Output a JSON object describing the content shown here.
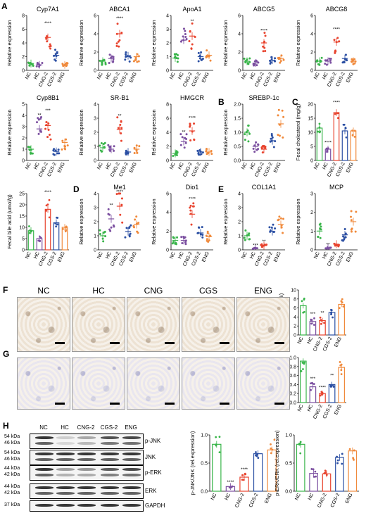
{
  "groups": [
    "NC",
    "HC",
    "CNG-2",
    "CGS-2",
    "ENG"
  ],
  "colors": {
    "NC": "#39b54a",
    "HC": "#7b4fa0",
    "CNG-2": "#e8442f",
    "CGS-2": "#2b4fa3",
    "ENG": "#f08a3c"
  },
  "panel_letters": [
    "A",
    "B",
    "C",
    "D",
    "E",
    "F",
    "G",
    "H"
  ],
  "y_label_rel": "Relative expression",
  "chart_data": [
    {
      "type": "scatter",
      "title": "Cyp7A1",
      "ylabel": "Relative expression",
      "ylim": [
        0,
        8
      ],
      "yticks": [
        "0",
        "2",
        "4",
        "6",
        "8"
      ],
      "means": [
        1.0,
        0.8,
        4.8,
        2.2,
        0.8
      ],
      "sig": [
        "",
        "",
        "****",
        "",
        ""
      ]
    },
    {
      "type": "scatter",
      "title": "ABCA1",
      "ylabel": "Relative expression",
      "ylim": [
        0,
        6
      ],
      "yticks": [
        "0",
        "2",
        "4",
        "6"
      ],
      "means": [
        1.0,
        1.3,
        4.0,
        1.6,
        1.5
      ],
      "sig": [
        "",
        "",
        "****",
        "",
        ""
      ]
    },
    {
      "type": "scatter",
      "title": "ApoA1",
      "ylabel": "Relative expression",
      "ylim": [
        0,
        4
      ],
      "yticks": [
        "0",
        "1",
        "2",
        "3",
        "4"
      ],
      "means": [
        0.9,
        2.2,
        2.5,
        1.0,
        1.1
      ],
      "sig": [
        "",
        "",
        "**",
        "",
        ""
      ]
    },
    {
      "type": "scatter",
      "title": "ABCG5",
      "ylabel": "Relative expression",
      "ylim": [
        0,
        6
      ],
      "yticks": [
        "0",
        "2",
        "4",
        "6"
      ],
      "means": [
        1.0,
        0.8,
        3.0,
        1.1,
        1.3
      ],
      "sig": [
        "",
        "",
        "****",
        "",
        ""
      ]
    },
    {
      "type": "scatter",
      "title": "ABCG8",
      "ylabel": "Relative expression",
      "ylim": [
        0,
        6
      ],
      "yticks": [
        "0",
        "2",
        "4",
        "6"
      ],
      "means": [
        1.0,
        1.0,
        3.1,
        1.3,
        1.0
      ],
      "sig": [
        "",
        "",
        "****",
        "",
        ""
      ]
    },
    {
      "type": "scatter",
      "title": "Cyp8B1",
      "ylabel": "Relative expression",
      "ylim": [
        0,
        5
      ],
      "yticks": [
        "0",
        "1",
        "2",
        "3",
        "4",
        "5"
      ],
      "means": [
        1.0,
        2.8,
        3.1,
        0.8,
        1.6
      ],
      "sig": [
        "",
        "**",
        "***",
        "",
        ""
      ]
    },
    {
      "type": "scatter",
      "title": "SR-B1",
      "ylabel": "Relative expression",
      "ylim": [
        0,
        4
      ],
      "yticks": [
        "0",
        "1",
        "2",
        "3",
        "4"
      ],
      "means": [
        0.9,
        0.8,
        2.2,
        0.6,
        0.8
      ],
      "sig": [
        "",
        "",
        "**",
        "",
        ""
      ]
    },
    {
      "type": "scatter",
      "title": "HMGCR",
      "ylabel": "Relative expression",
      "ylim": [
        0,
        8
      ],
      "yticks": [
        "0",
        "2",
        "4",
        "6",
        "8"
      ],
      "means": [
        1.0,
        2.7,
        4.2,
        1.2,
        1.2
      ],
      "sig": [
        "",
        "**",
        "****",
        "",
        ""
      ]
    },
    {
      "type": "scatter",
      "title": "SREBP-1c",
      "ylabel": "Relative expression",
      "ylim": [
        0,
        2
      ],
      "yticks": [
        "0.0",
        "0.5",
        "1.0",
        "1.5",
        "2.0"
      ],
      "means": [
        1.0,
        0.5,
        0.4,
        0.7,
        1.3
      ],
      "sig": [
        "",
        "",
        "",
        "",
        ""
      ]
    },
    {
      "type": "bar",
      "title": "",
      "ylabel": "Fecal cholesterol (mg/g)",
      "ylim": [
        0,
        20
      ],
      "yticks": [
        "0",
        "5",
        "10",
        "15",
        "20"
      ],
      "means": [
        11.5,
        4.0,
        17.0,
        10.5,
        10.5
      ],
      "sig": [
        "",
        "****",
        "****",
        "",
        ""
      ]
    },
    {
      "type": "bar",
      "title": "",
      "ylabel": "Fecal bile acid (umol/g)",
      "ylim": [
        0,
        25
      ],
      "yticks": [
        "0",
        "5",
        "10",
        "15",
        "20",
        "25"
      ],
      "means": [
        8.5,
        5.0,
        18.0,
        12.0,
        10.0
      ],
      "sig": [
        "",
        "",
        "****",
        "",
        ""
      ]
    },
    {
      "type": "scatter",
      "title": "Me1",
      "ylabel": "Relative expression",
      "ylim": [
        0,
        4
      ],
      "yticks": [
        "0",
        "1",
        "2",
        "3",
        "4"
      ],
      "means": [
        1.0,
        2.2,
        3.1,
        1.3,
        1.8
      ],
      "sig": [
        "",
        "**",
        "****",
        "",
        ""
      ]
    },
    {
      "type": "scatter",
      "title": "Dio1",
      "ylabel": "Relative expression",
      "ylim": [
        0,
        6
      ],
      "yticks": [
        "0",
        "2",
        "4",
        "6"
      ],
      "means": [
        1.0,
        1.0,
        3.8,
        1.8,
        1.4
      ],
      "sig": [
        "",
        "",
        "****",
        "",
        ""
      ]
    },
    {
      "type": "scatter",
      "title": "COL1A1",
      "ylabel": "Relative expression",
      "ylim": [
        0,
        4
      ],
      "yticks": [
        "0",
        "1",
        "2",
        "3",
        "4"
      ],
      "means": [
        1.0,
        0.1,
        0.3,
        1.3,
        1.8
      ],
      "sig": [
        "",
        "***",
        "**",
        "",
        ""
      ]
    },
    {
      "type": "scatter",
      "title": "MCP",
      "ylabel": "Relative expression",
      "ylim": [
        0,
        3
      ],
      "yticks": [
        "0",
        "1",
        "2",
        "3"
      ],
      "means": [
        1.0,
        0.1,
        0.3,
        0.8,
        1.5
      ],
      "sig": [
        "",
        "**",
        "",
        "",
        ""
      ]
    },
    {
      "type": "bar",
      "title": "",
      "ylabel": "F4/80+ area (%)",
      "ylim": [
        0,
        10
      ],
      "yticks": [
        "0",
        "2",
        "4",
        "6",
        "8",
        "10"
      ],
      "means": [
        6.5,
        3.0,
        3.2,
        5.0,
        6.8
      ],
      "sig": [
        "",
        "***",
        "**",
        "",
        ""
      ]
    },
    {
      "type": "bar",
      "title": "",
      "ylabel": "αSMA+ area (%)",
      "ylim": [
        0,
        1.0
      ],
      "yticks": [
        "0.0",
        "0.2",
        "0.4",
        "0.6",
        "0.8",
        "1.0"
      ],
      "means": [
        0.92,
        0.35,
        0.2,
        0.4,
        0.78
      ],
      "sig": [
        "",
        "***",
        "****",
        "**",
        ""
      ]
    },
    {
      "type": "bar",
      "title": "",
      "ylabel": "p-JNK/JNK (rel.expression)",
      "ylim": [
        0,
        1.2
      ],
      "yticks": [
        "0.0",
        "0.5",
        "1.0"
      ],
      "means": [
        1.0,
        0.1,
        0.3,
        0.8,
        0.88
      ],
      "sig": [
        "",
        "****",
        "****",
        "",
        ""
      ]
    },
    {
      "type": "bar",
      "title": "",
      "ylabel": "p-ERK/ERK (rel.expression)",
      "ylim": [
        0,
        1.2
      ],
      "yticks": [
        "0.0",
        "0.5",
        "1.0"
      ],
      "means": [
        1.0,
        0.38,
        0.37,
        0.72,
        0.86
      ],
      "sig": [
        "",
        "",
        "",
        "",
        ""
      ]
    }
  ],
  "stain_groups": [
    "NC",
    "HC",
    "CNG",
    "CGS",
    "ENG"
  ],
  "blot": {
    "lanes": [
      "NC",
      "HC",
      "CNG-2",
      "CGS-2",
      "ENG"
    ],
    "rows": [
      {
        "name": "p-JNK",
        "kda": [
          "54 kDa",
          "46 kDa"
        ]
      },
      {
        "name": "JNK",
        "kda": [
          "54 kDa",
          "46 kDa"
        ]
      },
      {
        "name": "p-ERK",
        "kda": [
          "44 kDa",
          "42 kDa"
        ]
      },
      {
        "name": "ERK",
        "kda": [
          "44 kDa",
          "42 kDa"
        ]
      },
      {
        "name": "GAPDH",
        "kda": [
          "37 kDa"
        ]
      }
    ]
  }
}
